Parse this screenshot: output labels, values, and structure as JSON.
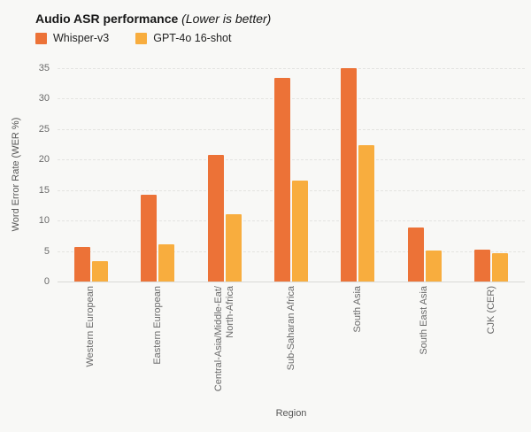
{
  "title": {
    "main": "Audio ASR performance",
    "note": "(Lower is better)"
  },
  "colors": {
    "background": "#F8F8F6",
    "gridline": "#E4E4E1",
    "axis_line": "#D9D9D6",
    "tick_text": "#6A6A6A",
    "axis_title_text": "#565656",
    "title_text": "#171717",
    "whisper_orange": "#EC7237",
    "gpt_yellow": "#F8AD3E"
  },
  "chart_data": {
    "type": "bar",
    "title": "Audio ASR performance (Lower is better)",
    "xlabel": "Region",
    "ylabel": "Word Error Rate (WER %)",
    "ylim": [
      0,
      35
    ],
    "yticks": [
      0,
      5,
      10,
      15,
      20,
      25,
      30,
      35
    ],
    "grid": true,
    "legend_position": "top-left",
    "categories": [
      "Western European",
      "Eastern European",
      "Central-Asia/Middle-Eat/\nNorth-Africa",
      "Sub-Saharan Africa",
      "South Asia",
      "South East Asia",
      "CJK (CER)"
    ],
    "series": [
      {
        "name": "Whisper-v3",
        "color": "#EC7237",
        "values": [
          5.6,
          14.2,
          20.7,
          33.4,
          35.0,
          8.9,
          5.2
        ]
      },
      {
        "name": "GPT-4o 16-shot",
        "color": "#F8AD3E",
        "values": [
          3.4,
          6.1,
          11.0,
          16.6,
          22.4,
          5.1,
          4.7
        ]
      }
    ]
  }
}
